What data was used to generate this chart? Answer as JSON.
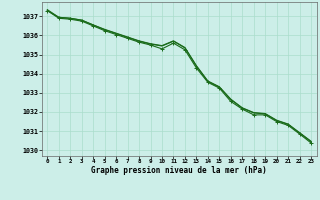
{
  "x": [
    0,
    1,
    2,
    3,
    4,
    5,
    6,
    7,
    8,
    9,
    10,
    11,
    12,
    13,
    14,
    15,
    16,
    17,
    18,
    19,
    20,
    21,
    22,
    23
  ],
  "line1": [
    1037.3,
    1036.9,
    1036.85,
    1036.75,
    1036.5,
    1036.25,
    1036.05,
    1035.85,
    1035.65,
    1035.5,
    1035.3,
    1035.6,
    1035.25,
    1034.3,
    1033.55,
    1033.25,
    1032.55,
    1032.15,
    1031.85,
    1031.85,
    1031.5,
    1031.3,
    1030.85,
    1030.38
  ],
  "line2": [
    1037.3,
    1036.95,
    1036.9,
    1036.8,
    1036.55,
    1036.3,
    1036.1,
    1035.9,
    1035.7,
    1035.55,
    1035.45,
    1035.7,
    1035.35,
    1034.4,
    1033.6,
    1033.3,
    1032.65,
    1032.2,
    1031.95,
    1031.9,
    1031.55,
    1031.35,
    1030.9,
    1030.45
  ],
  "line3": [
    1037.35,
    1036.95,
    1036.9,
    1036.8,
    1036.55,
    1036.32,
    1036.12,
    1035.92,
    1035.72,
    1035.57,
    1035.47,
    1035.72,
    1035.37,
    1034.42,
    1033.62,
    1033.32,
    1032.67,
    1032.22,
    1031.97,
    1031.92,
    1031.57,
    1031.37,
    1030.92,
    1030.47
  ],
  "line_color": "#1a6b1a",
  "bg_color": "#cceee8",
  "grid_color": "#aaddcc",
  "xlabel": "Graphe pression niveau de la mer (hPa)",
  "ylim_min": 1029.7,
  "ylim_max": 1037.75,
  "yticks": [
    1030,
    1031,
    1032,
    1033,
    1034,
    1035,
    1036,
    1037
  ],
  "xticks": [
    0,
    1,
    2,
    3,
    4,
    5,
    6,
    7,
    8,
    9,
    10,
    11,
    12,
    13,
    14,
    15,
    16,
    17,
    18,
    19,
    20,
    21,
    22,
    23
  ],
  "marker": "+",
  "marker_size": 3,
  "line_width": 0.8
}
